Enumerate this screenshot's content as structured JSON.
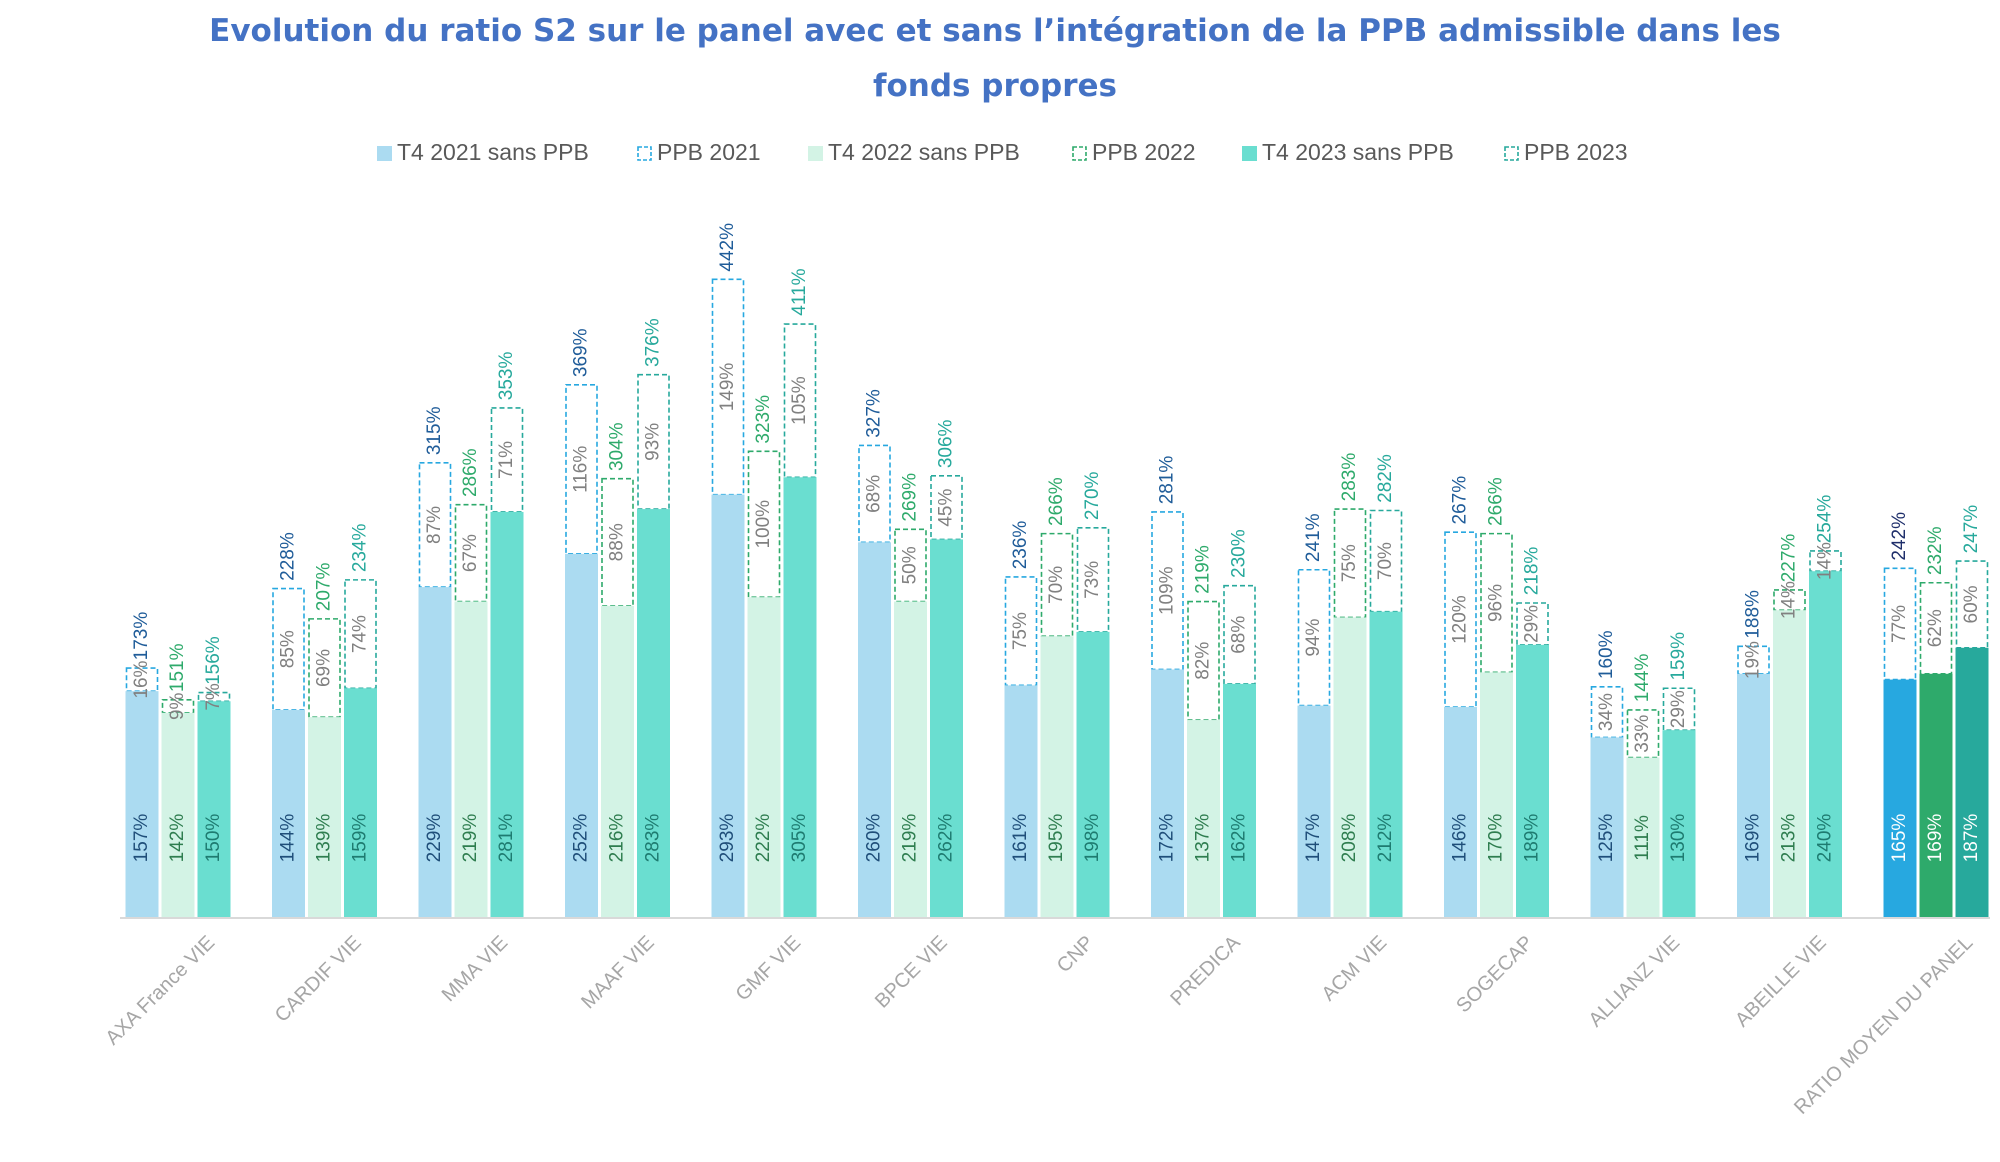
{
  "chart_data": {
    "type": "bar",
    "title": "Evolution du ratio S2 sur le panel avec et sans l’intégration de la PPB admissible dans les fonds propres",
    "legend_position": "top",
    "grid": false,
    "ylim": [
      0,
      460
    ],
    "categories": [
      "AXA France VIE",
      "CARDIF VIE",
      "MMA VIE",
      "MAAF VIE",
      "GMF VIE",
      "BPCE VIE",
      "CNP",
      "PREDICA",
      "ACM VIE",
      "SOGECAP",
      "ALLIANZ VIE",
      "ABEILLE VIE",
      "RATIO MOYEN DU PANEL"
    ],
    "groups": [
      {
        "year": "2021",
        "base_name": "T4 2021 sans PPB",
        "ppb_name": "PPB 2021",
        "base_values": [
          "157%",
          "144%",
          "229%",
          "252%",
          "293%",
          "260%",
          "161%",
          "172%",
          "147%",
          "146%",
          "125%",
          "169%",
          "165%"
        ],
        "ppb_values": [
          "16%",
          "85%",
          "87%",
          "116%",
          "149%",
          "68%",
          "75%",
          "109%",
          "94%",
          "120%",
          "34%",
          "19%",
          "77%"
        ],
        "totals": [
          "173%",
          "228%",
          "315%",
          "369%",
          "442%",
          "327%",
          "236%",
          "281%",
          "241%",
          "267%",
          "160%",
          "188%",
          "242%"
        ]
      },
      {
        "year": "2022",
        "base_name": "T4 2022 sans PPB",
        "ppb_name": "PPB 2022",
        "base_values": [
          "142%",
          "139%",
          "219%",
          "216%",
          "222%",
          "219%",
          "195%",
          "137%",
          "208%",
          "170%",
          "111%",
          "213%",
          "169%"
        ],
        "ppb_values": [
          "9%",
          "69%",
          "67%",
          "88%",
          "100%",
          "50%",
          "70%",
          "82%",
          "75%",
          "96%",
          "33%",
          "14%",
          "62%"
        ],
        "totals": [
          "151%",
          "207%",
          "286%",
          "304%",
          "323%",
          "269%",
          "266%",
          "219%",
          "283%",
          "266%",
          "144%",
          "227%",
          "232%"
        ]
      },
      {
        "year": "2023",
        "base_name": "T4 2023 sans PPB",
        "ppb_name": "PPB 2023",
        "base_values": [
          "150%",
          "159%",
          "281%",
          "283%",
          "305%",
          "262%",
          "198%",
          "162%",
          "212%",
          "189%",
          "130%",
          "240%",
          "187%"
        ],
        "ppb_values": [
          "7%",
          "74%",
          "71%",
          "93%",
          "105%",
          "45%",
          "73%",
          "68%",
          "70%",
          "29%",
          "29%",
          "14%",
          "60%"
        ],
        "totals": [
          "156%",
          "234%",
          "353%",
          "376%",
          "411%",
          "306%",
          "270%",
          "230%",
          "282%",
          "218%",
          "159%",
          "254%",
          "247%"
        ]
      }
    ],
    "colors": {
      "base": [
        "#ABDBF1",
        "#D3F3E5",
        "#6ADED0"
      ],
      "base_panel": [
        "#27A8E0",
        "#2EAA6B",
        "#27A99C"
      ],
      "ppb_border": [
        "#27A8E0",
        "#2EAA6B",
        "#27A99C"
      ],
      "total_label": [
        "#1F5C99",
        "#2EAA6B",
        "#27A99C"
      ],
      "total_label_panel": [
        "#1F2F6B",
        "#2EAA6B",
        "#27A99C"
      ],
      "inner_label": [
        "#1F4E79",
        "#2E7D4F",
        "#1E7B70"
      ],
      "ppb_label": "#808080",
      "axis": "#D9D9D9",
      "category_label": "#A6A6A6",
      "title": "#4472C4"
    }
  }
}
